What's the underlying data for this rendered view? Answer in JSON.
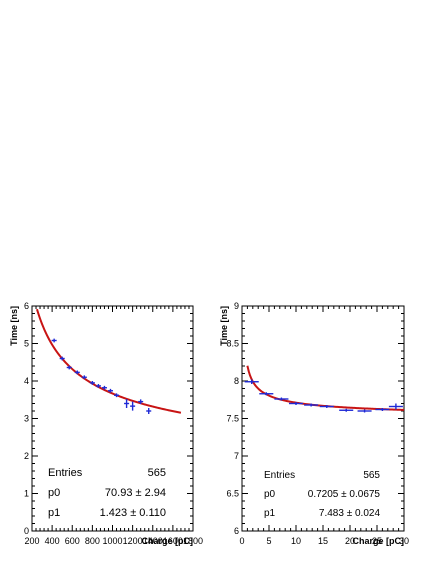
{
  "chart_data": [
    {
      "type": "scatter",
      "xlabel": "Charge [pC]",
      "ylabel": "Time [ns]",
      "xlim": [
        200,
        1800
      ],
      "ylim": [
        0,
        6
      ],
      "xticks": [
        200,
        400,
        600,
        800,
        1000,
        1200,
        1400,
        1600,
        1800
      ],
      "yticks": [
        0,
        1,
        2,
        3,
        4,
        5,
        6
      ],
      "series": [
        {
          "x": [
            420,
            500,
            570,
            650,
            720,
            800,
            860,
            920,
            980,
            1040,
            1140,
            1200,
            1280,
            1360
          ],
          "y": [
            5.08,
            4.6,
            4.36,
            4.23,
            4.1,
            3.95,
            3.87,
            3.82,
            3.74,
            3.62,
            3.4,
            3.33,
            3.45,
            3.2
          ],
          "x_err": [
            25,
            25,
            25,
            25,
            25,
            25,
            25,
            25,
            25,
            25,
            25,
            25,
            25,
            25
          ],
          "y_err": [
            0.05,
            0.05,
            0.05,
            0.05,
            0.05,
            0.05,
            0.05,
            0.05,
            0.05,
            0.05,
            0.12,
            0.12,
            0.06,
            0.08
          ]
        }
      ],
      "fit": {
        "p0": 70.93,
        "p1": 1.423,
        "x_range": [
          200,
          1680
        ]
      },
      "color_points": "#1f2ad6",
      "color_fit": "#c81414",
      "stats": {
        "entries_label": "Entries",
        "entries_value": "565",
        "p0_label": "p0",
        "p0_value": "70.93 ± 2.94",
        "p1_label": "p1",
        "p1_value": "1.423 ± 0.110"
      }
    },
    {
      "type": "scatter",
      "xlabel": "Charge [pC]",
      "ylabel": "Time [ns]",
      "xlim": [
        0,
        30
      ],
      "ylim": [
        6,
        9
      ],
      "xticks": [
        0,
        5,
        10,
        15,
        20,
        25,
        30
      ],
      "yticks": [
        6,
        6.5,
        7,
        7.5,
        8,
        8.5,
        9
      ],
      "series": [
        {
          "x": [
            1.8,
            4.5,
            7.3,
            10,
            12.8,
            15.7,
            19.3,
            22.7,
            26,
            28.5
          ],
          "y": [
            7.99,
            7.83,
            7.76,
            7.7,
            7.68,
            7.66,
            7.61,
            7.6,
            7.62,
            7.66
          ],
          "x_err": [
            1.3,
            1.3,
            1.3,
            1.3,
            1.3,
            1.3,
            1.3,
            1.3,
            1.3,
            1.3
          ],
          "y_err": [
            0.03,
            0.02,
            0.02,
            0.02,
            0.02,
            0.02,
            0.02,
            0.02,
            0.02,
            0.04
          ]
        }
      ],
      "fit": {
        "p0": 0.7205,
        "p1": 7.483,
        "x_range": [
          1.0,
          30
        ]
      },
      "color_points": "#1f2ad6",
      "color_fit": "#c81414",
      "stats": {
        "entries_label": "Entries",
        "entries_value": "565",
        "p0_label": "p0",
        "p0_value": "0.7205 ± 0.0675",
        "p1_label": "p1",
        "p1_value": "7.483 ± 0.024"
      }
    }
  ]
}
